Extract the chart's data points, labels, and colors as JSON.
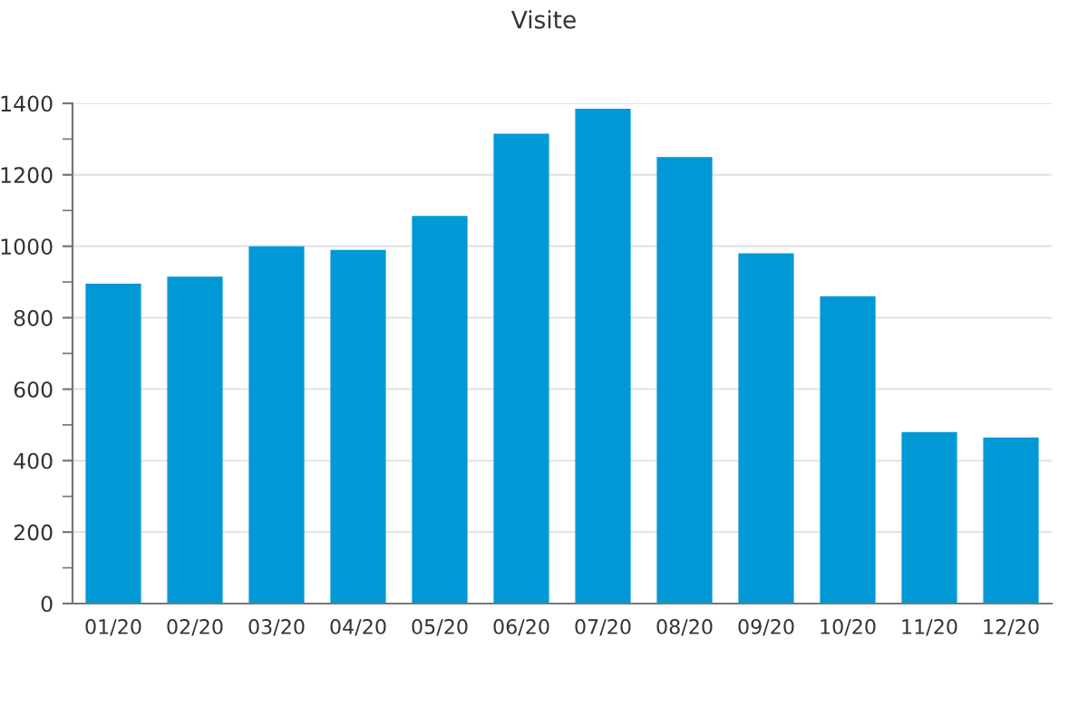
{
  "chart_data": {
    "type": "bar",
    "title": "Visite",
    "categories": [
      "01/20",
      "02/20",
      "03/20",
      "04/20",
      "05/20",
      "06/20",
      "07/20",
      "08/20",
      "09/20",
      "10/20",
      "11/20",
      "12/20"
    ],
    "values": [
      895,
      915,
      1000,
      990,
      1085,
      1315,
      1385,
      1250,
      980,
      860,
      480,
      465
    ],
    "color": "#0099d6",
    "ylim": [
      0,
      1400
    ],
    "yticks": [
      0,
      200,
      400,
      600,
      800,
      1000,
      1200,
      1400
    ],
    "grid": "y",
    "legend": false
  }
}
